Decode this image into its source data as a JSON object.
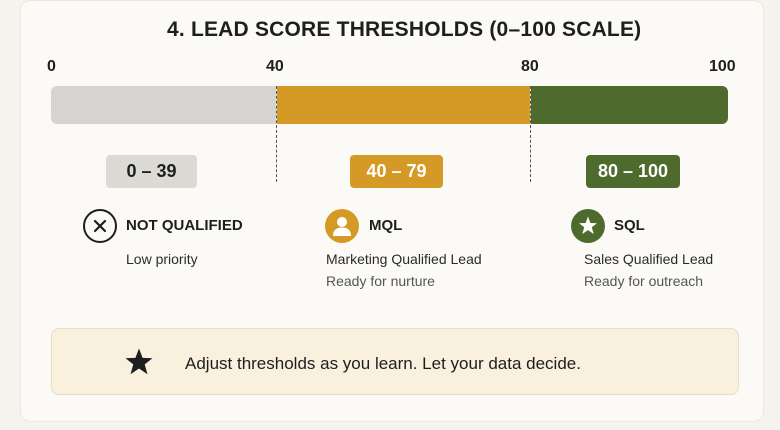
{
  "title": "4. LEAD SCORE THRESHOLDS (0–100 SCALE)",
  "scale": {
    "ticks": [
      "0",
      "40",
      "80",
      "100"
    ],
    "min": 0,
    "max": 100,
    "boundaries": [
      40,
      80
    ]
  },
  "segments": [
    {
      "range": "0 – 39",
      "from": 0,
      "to": 39,
      "color": "#d5d4d0"
    },
    {
      "range": "40 – 79",
      "from": 40,
      "to": 79,
      "color": "#d59a26"
    },
    {
      "range": "80 – 100",
      "from": 80,
      "to": 100,
      "color": "#4e6b2d"
    }
  ],
  "categories": {
    "not_qualified": {
      "icon": "x-circle-icon",
      "label": "NOT QUALIFIED",
      "description": "Low priority"
    },
    "mql": {
      "icon": "person-icon",
      "label": "MQL",
      "description": "Marketing Qualified Lead",
      "sub": "Ready for nurture"
    },
    "sql": {
      "icon": "star-icon",
      "label": "SQL",
      "description": "Sales Qualified Lead",
      "sub": "Ready for outreach"
    }
  },
  "tip": {
    "icon": "star-icon",
    "text": "Adjust thresholds as you learn. Let your data decide."
  },
  "colors": {
    "grey": "#d5d4d0",
    "gold": "#d59a26",
    "green": "#4e6b2d",
    "tip_background": "#f9f0dd"
  }
}
